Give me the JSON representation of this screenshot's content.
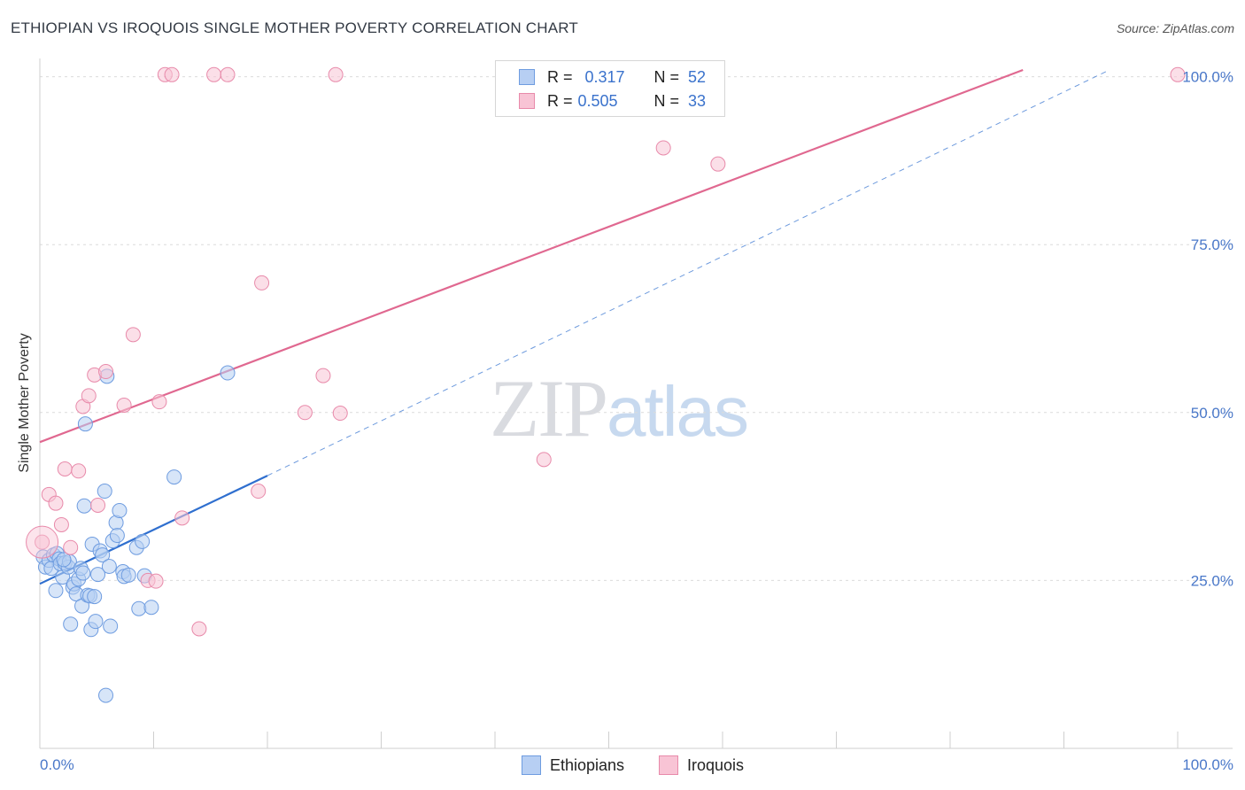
{
  "title": "ETHIOPIAN VS IROQUOIS SINGLE MOTHER POVERTY CORRELATION CHART",
  "source": "Source: ZipAtlas.com",
  "watermark": {
    "zip": "ZIP",
    "atlas": "atlas"
  },
  "legend": {
    "r_label": "R =",
    "n_label": "N =",
    "rows": [
      {
        "name": "Ethiopians",
        "r": "0.317",
        "n": "52",
        "fill": "#b7cff3",
        "stroke": "#6e9ce0"
      },
      {
        "name": "Iroquois",
        "r": "0.505",
        "n": "33",
        "fill": "#f8c4d5",
        "stroke": "#e88aaa"
      }
    ]
  },
  "chart_data": {
    "type": "scatter",
    "title": "ETHIOPIAN VS IROQUOIS SINGLE MOTHER POVERTY CORRELATION CHART",
    "xlabel": "",
    "ylabel": "Single Mother Poverty",
    "xlim": [
      0,
      100
    ],
    "ylim": [
      0,
      101
    ],
    "x_tick_labels": [
      "0.0%",
      "100.0%"
    ],
    "y_ticks": [
      25,
      50,
      75,
      100
    ],
    "y_tick_labels": [
      "25.0%",
      "50.0%",
      "75.0%",
      "100.0%"
    ],
    "grid": true,
    "series": [
      {
        "name": "Ethiopians",
        "color": "#6e9ce0",
        "fill": "#b7cff3",
        "line_color": "#2f6fcf",
        "trend": {
          "x": [
            0,
            20
          ],
          "y": [
            24.5,
            40.6
          ]
        },
        "trend_extension": {
          "x": [
            20,
            94
          ],
          "y": [
            40.6,
            101
          ]
        },
        "points": [
          [
            0.3,
            28.5
          ],
          [
            0.5,
            27
          ],
          [
            0.8,
            28
          ],
          [
            1.0,
            26.8
          ],
          [
            1.2,
            28.8
          ],
          [
            1.4,
            23.5
          ],
          [
            1.5,
            29
          ],
          [
            1.7,
            28.2
          ],
          [
            1.8,
            27.5
          ],
          [
            2.0,
            25.5
          ],
          [
            2.2,
            27.6
          ],
          [
            2.5,
            27
          ],
          [
            2.6,
            27.8
          ],
          [
            2.7,
            18.5
          ],
          [
            2.9,
            24
          ],
          [
            3.0,
            24.5
          ],
          [
            3.2,
            23
          ],
          [
            3.4,
            25.2
          ],
          [
            3.6,
            26.8
          ],
          [
            3.7,
            21.2
          ],
          [
            3.8,
            26.1
          ],
          [
            3.9,
            36.1
          ],
          [
            4.0,
            48.3
          ],
          [
            4.2,
            22.8
          ],
          [
            4.4,
            22.7
          ],
          [
            4.5,
            17.7
          ],
          [
            4.6,
            30.4
          ],
          [
            4.8,
            22.6
          ],
          [
            4.9,
            18.9
          ],
          [
            5.1,
            25.9
          ],
          [
            5.3,
            29.4
          ],
          [
            5.5,
            28.8
          ],
          [
            5.7,
            38.3
          ],
          [
            5.8,
            7.9
          ],
          [
            5.9,
            55.4
          ],
          [
            6.1,
            27.1
          ],
          [
            6.2,
            18.2
          ],
          [
            6.4,
            30.9
          ],
          [
            6.7,
            33.6
          ],
          [
            6.8,
            31.7
          ],
          [
            7.0,
            35.4
          ],
          [
            7.3,
            26.3
          ],
          [
            7.4,
            25.6
          ],
          [
            7.8,
            25.8
          ],
          [
            8.5,
            29.9
          ],
          [
            8.7,
            20.8
          ],
          [
            9.0,
            30.8
          ],
          [
            9.2,
            25.7
          ],
          [
            9.8,
            21
          ],
          [
            11.8,
            40.4
          ],
          [
            16.5,
            55.9
          ],
          [
            2.1,
            28.1
          ]
        ]
      },
      {
        "name": "Iroquois",
        "color": "#e88aaa",
        "fill": "#f8c4d5",
        "line_color": "#e06890",
        "trend": {
          "x": [
            0,
            86.4
          ],
          "y": [
            45.6,
            101
          ]
        },
        "points": [
          [
            0.2,
            30.7
          ],
          [
            0.8,
            37.8
          ],
          [
            1.4,
            36.5
          ],
          [
            1.9,
            33.3
          ],
          [
            2.2,
            41.6
          ],
          [
            2.7,
            29.9
          ],
          [
            3.4,
            41.3
          ],
          [
            3.8,
            50.9
          ],
          [
            4.3,
            52.5
          ],
          [
            4.8,
            55.6
          ],
          [
            5.1,
            36.2
          ],
          [
            5.8,
            56.1
          ],
          [
            7.4,
            51.1
          ],
          [
            8.2,
            61.6
          ],
          [
            9.5,
            25
          ],
          [
            10.2,
            24.9
          ],
          [
            10.5,
            51.6
          ],
          [
            11.0,
            100.3
          ],
          [
            11.6,
            100.3
          ],
          [
            12.5,
            34.3
          ],
          [
            14.0,
            17.8
          ],
          [
            15.3,
            100.3
          ],
          [
            16.5,
            100.3
          ],
          [
            19.2,
            38.3
          ],
          [
            19.5,
            69.3
          ],
          [
            23.3,
            50
          ],
          [
            24.9,
            55.5
          ],
          [
            26.0,
            100.3
          ],
          [
            26.4,
            49.9
          ],
          [
            44.3,
            43
          ],
          [
            54.8,
            89.4
          ],
          [
            59.6,
            87
          ],
          [
            100.0,
            100.3
          ]
        ]
      }
    ]
  }
}
